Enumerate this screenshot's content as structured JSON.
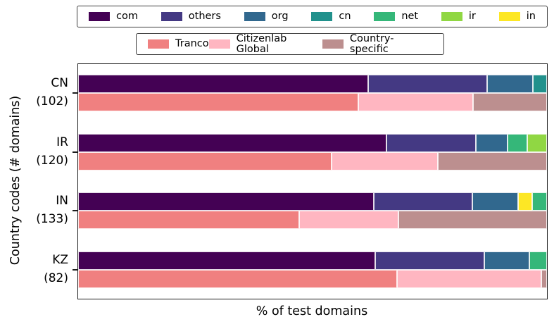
{
  "legend_tld": {
    "items": [
      {
        "label": "com",
        "color": "#440154"
      },
      {
        "label": "others",
        "color": "#443983"
      },
      {
        "label": "org",
        "color": "#31688e"
      },
      {
        "label": "cn",
        "color": "#21918c"
      },
      {
        "label": "net",
        "color": "#35b779"
      },
      {
        "label": "ir",
        "color": "#90d743"
      },
      {
        "label": "in",
        "color": "#fde725"
      }
    ]
  },
  "legend_source": {
    "items": [
      {
        "label": "Tranco",
        "color": "#f08080"
      },
      {
        "label": "Citizenlab Global",
        "color": "#ffb6c1"
      },
      {
        "label": "Country-specific",
        "color": "#bc8f8f"
      }
    ]
  },
  "chart_data": {
    "type": "bar",
    "orientation": "horizontal",
    "stacked": true,
    "title": "",
    "xlabel": "% of test domains",
    "ylabel": "Country codes (# domains)",
    "xlim": [
      0,
      100
    ],
    "grid": false,
    "legend_position": "top",
    "x_tick_labels": [],
    "colors": {
      "com": "#440154",
      "others": "#443983",
      "org": "#31688e",
      "cn": "#21918c",
      "net": "#35b779",
      "ir": "#90d743",
      "in": "#fde725",
      "Tranco": "#f08080",
      "Citizenlab Global": "#ffb6c1",
      "Country-specific": "#bc8f8f"
    },
    "groups": [
      {
        "country": "CN",
        "tick_label": "CN\n(102)",
        "n_domains": 102,
        "tld_bar": [
          {
            "name": "com",
            "pct": 61.9
          },
          {
            "name": "others",
            "pct": 25.4
          },
          {
            "name": "org",
            "pct": 9.7
          },
          {
            "name": "cn",
            "pct": 3.0
          }
        ],
        "source_bar": [
          {
            "name": "Tranco",
            "pct": 59.8
          },
          {
            "name": "Citizenlab Global",
            "pct": 24.5
          },
          {
            "name": "Country-specific",
            "pct": 15.7
          }
        ]
      },
      {
        "country": "IR",
        "tick_label": "IR\n(120)",
        "n_domains": 120,
        "tld_bar": [
          {
            "name": "com",
            "pct": 65.8
          },
          {
            "name": "others",
            "pct": 19.1
          },
          {
            "name": "org",
            "pct": 6.7
          },
          {
            "name": "net",
            "pct": 4.2
          },
          {
            "name": "ir",
            "pct": 4.2
          }
        ],
        "source_bar": [
          {
            "name": "Tranco",
            "pct": 54.1
          },
          {
            "name": "Citizenlab Global",
            "pct": 22.6
          },
          {
            "name": "Country-specific",
            "pct": 23.3
          }
        ]
      },
      {
        "country": "IN",
        "tick_label": "IN\n(133)",
        "n_domains": 133,
        "tld_bar": [
          {
            "name": "com",
            "pct": 63.1
          },
          {
            "name": "others",
            "pct": 21.0
          },
          {
            "name": "org",
            "pct": 9.8
          },
          {
            "name": "in",
            "pct": 3.0
          },
          {
            "name": "net",
            "pct": 3.1
          }
        ],
        "source_bar": [
          {
            "name": "Tranco",
            "pct": 47.1
          },
          {
            "name": "Citizenlab Global",
            "pct": 21.2
          },
          {
            "name": "Country-specific",
            "pct": 31.7
          }
        ]
      },
      {
        "country": "KZ",
        "tick_label": "KZ\n(82)",
        "n_domains": 82,
        "tld_bar": [
          {
            "name": "com",
            "pct": 63.4
          },
          {
            "name": "others",
            "pct": 23.2
          },
          {
            "name": "org",
            "pct": 9.6
          },
          {
            "name": "net",
            "pct": 3.8
          }
        ],
        "source_bar": [
          {
            "name": "Tranco",
            "pct": 68.0
          },
          {
            "name": "Citizenlab Global",
            "pct": 30.8
          },
          {
            "name": "Country-specific",
            "pct": 1.2
          }
        ]
      }
    ]
  }
}
